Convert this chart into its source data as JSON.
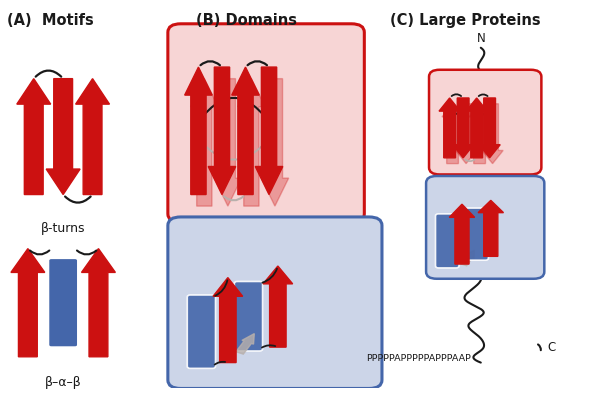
{
  "section_A_title": "(A)  Motifs",
  "section_B_title": "(B) Domains",
  "section_C_title": "(C) Large Proteins",
  "label_beta_turns": "β-turns",
  "label_beta_alpha_beta": "β–α–β",
  "label_proline": "PPPPPAPPPPPAPPPAAP",
  "label_N": "N",
  "label_C": "C",
  "red": "#cc1111",
  "red_light": "#f7d5d5",
  "blue": "#4466aa",
  "blue_light": "#ccd5e8",
  "gray": "#b8b0ac",
  "black": "#1a1a1a",
  "white": "#ffffff",
  "fig_w": 5.91,
  "fig_h": 3.93,
  "dpi": 100
}
